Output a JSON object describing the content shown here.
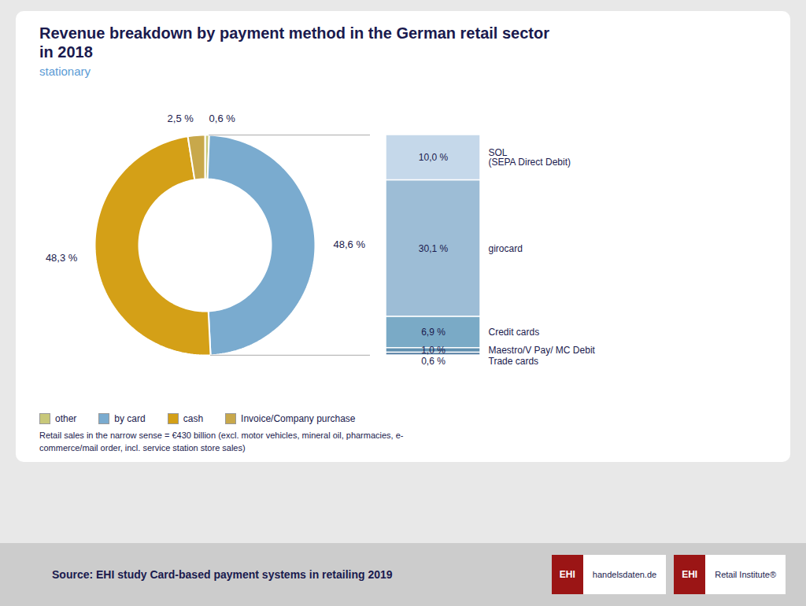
{
  "chart_data": [
    {
      "type": "pie",
      "title": "Revenue breakdown by payment method in the German retail sector\nin 2018",
      "subtitle": "stationary",
      "categories": [
        "other",
        "by card",
        "cash",
        "Invoice/Company purchase"
      ],
      "values": [
        0.6,
        48.6,
        48.3,
        2.5
      ],
      "value_labels": [
        "0,6 %",
        "48,6 %",
        "48,3 %",
        "2,5 %"
      ],
      "colors": [
        "#c8c87a",
        "#7aabcf",
        "#d4a017",
        "#c8a84b"
      ],
      "data_labels": true,
      "legend": "bottom",
      "annotations": [
        "Retail sales in the narrow sense = €430 billion (excl. motor vehicles, mineral oil, pharmacies, e-\ncommerce/mail order, incl. service station store sales)",
        "Source: EHI study Card-based payment systems in retailing 2019",
        "EHI",
        "handelsdaten.de",
        "EHI",
        "Retail Institute®"
      ]
    },
    {
      "type": "bar",
      "stacked": true,
      "categories": [
        null
      ],
      "series": [
        {
          "name": "SOL\n(SEPA Direct Debit)",
          "color": "#c5d8ea",
          "values": [
            10.0
          ],
          "value_labels": [
            "10,0 %"
          ]
        },
        {
          "name": "girocard",
          "color": "#9dbdd6",
          "values": [
            30.1
          ],
          "value_labels": [
            "30,1 %"
          ]
        },
        {
          "name": "Credit cards",
          "color": "#7aaac6",
          "values": [
            6.9
          ],
          "value_labels": [
            "6,9 %"
          ]
        },
        {
          "name": "Maestro/V Pay/ MC Debit",
          "color": "#6090b0",
          "values": [
            1.0
          ],
          "value_labels": [
            "1,0 %"
          ]
        },
        {
          "name": "Trade cards",
          "color": "#507aa0",
          "values": [
            0.6
          ],
          "value_labels": [
            "0,6 %"
          ]
        }
      ],
      "ylim": [
        0,
        48.6
      ],
      "data_labels": true,
      "tick_labels": false
    }
  ]
}
